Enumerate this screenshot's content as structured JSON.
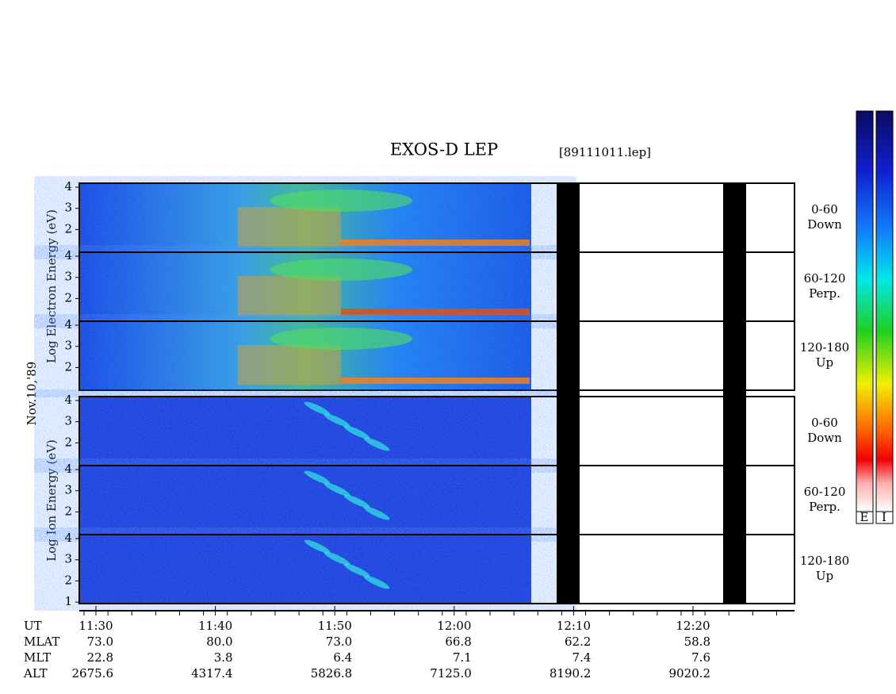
{
  "title": "EXOS-D LEP",
  "file": "[89111011.lep]",
  "y_label_electron": "Log Electron Energy (eV)",
  "y_label_ion": "Log Ion Energy (eV)",
  "date": "Nov.10,'89",
  "panels": [
    {
      "angle": "0-60",
      "direction": "Down",
      "yticks": [
        4,
        3,
        2
      ]
    },
    {
      "angle": "60-120",
      "direction": "Perp.",
      "yticks": [
        4,
        3,
        2
      ]
    },
    {
      "angle": "120-180",
      "direction": "Up",
      "yticks": [
        4,
        3,
        2
      ]
    },
    {
      "angle": "0-60",
      "direction": "Down",
      "yticks": [
        4,
        3,
        2
      ]
    },
    {
      "angle": "60-120",
      "direction": "Perp.",
      "yticks": [
        4,
        3,
        2
      ]
    },
    {
      "angle": "120-180",
      "direction": "Up",
      "yticks": [
        4,
        3,
        2,
        1
      ]
    }
  ],
  "ephemeris": [
    {
      "name": "UT",
      "values": [
        "11:30",
        "11:40",
        "11:50",
        "12:00",
        "12:10",
        "12:20"
      ]
    },
    {
      "name": "MLAT",
      "values": [
        "73.0",
        "80.0",
        "73.0",
        "66.8",
        "62.2",
        "58.8"
      ]
    },
    {
      "name": "MLT",
      "values": [
        "22.8",
        "3.8",
        "6.4",
        "7.1",
        "7.4",
        "7.6"
      ]
    },
    {
      "name": "ALT",
      "values": [
        "2675.6",
        "4317.4",
        "5826.8",
        "7125.0",
        "8190.2",
        "9020.2"
      ]
    }
  ],
  "colorbar_labels": [
    "E",
    "I"
  ]
}
